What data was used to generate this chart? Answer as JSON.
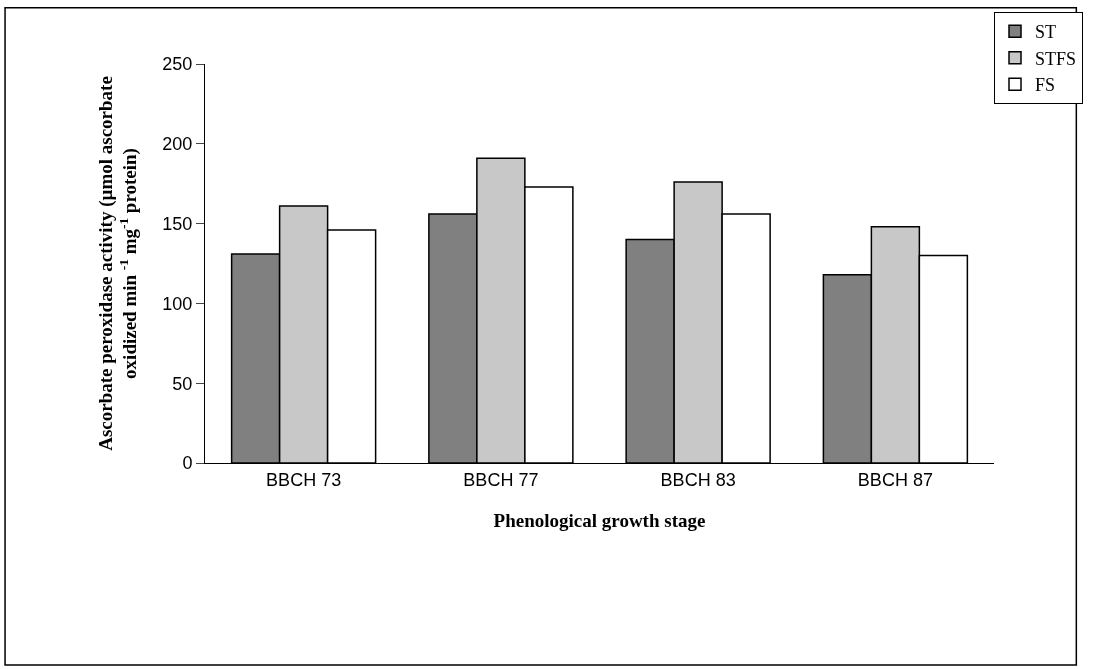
{
  "chart_data": {
    "type": "bar",
    "xlabel": "Phenological growth stage",
    "ylabel": "Ascorbate peroxidase activity (µmol ascorbate oxidized min $^{-1}$ mg$^{-1}$ protein)",
    "categories": [
      "BBCH 73",
      "BBCH 77",
      "BBCH 83",
      "BBCH 87"
    ],
    "series": [
      {
        "name": "ST",
        "color": "#808080",
        "values": [
          131,
          156,
          140,
          118
        ]
      },
      {
        "name": "STFS",
        "color": "#c8c8c8",
        "values": [
          161,
          191,
          176,
          148
        ]
      },
      {
        "name": "FS",
        "color": "#ffffff",
        "values": [
          146,
          173,
          156,
          130
        ]
      }
    ],
    "ylim": [
      0,
      250
    ],
    "yticks": [
      0,
      50,
      100,
      150,
      200,
      250
    ],
    "legend": "top right"
  }
}
